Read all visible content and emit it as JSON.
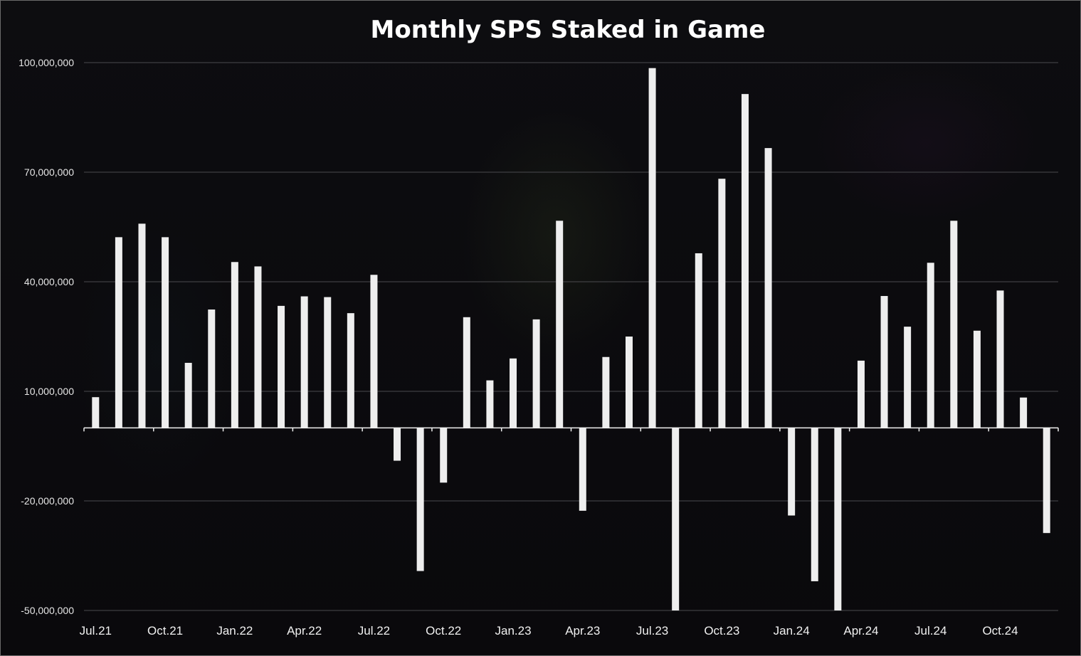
{
  "chart_data": {
    "type": "bar",
    "title": "Monthly SPS Staked in Game",
    "xlabel": "",
    "ylabel": "",
    "ylim": [
      -50000000,
      100000000
    ],
    "yticks": [
      100000000,
      70000000,
      40000000,
      10000000,
      -20000000,
      -50000000
    ],
    "ytick_labels": [
      "100,000,000",
      "70,000,000",
      "40,000,000",
      "10,000,000",
      "-20,000,000",
      "-50,000,000"
    ],
    "categories": [
      "Jul.21",
      "Aug.21",
      "Sep.21",
      "Oct.21",
      "Nov.21",
      "Dec.21",
      "Jan.22",
      "Feb.22",
      "Mar.22",
      "Apr.22",
      "May.22",
      "Jun.22",
      "Jul.22",
      "Aug.22",
      "Sep.22",
      "Oct.22",
      "Nov.22",
      "Dec.22",
      "Jan.23",
      "Feb.23",
      "Mar.23",
      "Apr.23",
      "May.23",
      "Jun.23",
      "Jul.23",
      "Aug.23",
      "Sep.23",
      "Oct.23",
      "Nov.23",
      "Dec.23",
      "Jan.24",
      "Feb.24",
      "Mar.24",
      "Apr.24",
      "May.24",
      "Jun.24",
      "Jul.24",
      "Aug.24",
      "Sep.24",
      "Oct.24",
      "Nov.24",
      "Dec.24"
    ],
    "xtick_labels": [
      "Jul.21",
      "",
      "",
      "Oct.21",
      "",
      "",
      "Jan.22",
      "",
      "",
      "Apr.22",
      "",
      "",
      "Jul.22",
      "",
      "",
      "Oct.22",
      "",
      "",
      "Jan.23",
      "",
      "",
      "Apr.23",
      "",
      "",
      "Jul.23",
      "",
      "",
      "Oct.23",
      "",
      "",
      "Jan.24",
      "",
      "",
      "Apr.24",
      "",
      "",
      "Jul.24",
      "",
      "",
      "Oct.24",
      "",
      ""
    ],
    "values": [
      8400000,
      52200000,
      55900000,
      52200000,
      17800000,
      32400000,
      45400000,
      44200000,
      33400000,
      36000000,
      35800000,
      31400000,
      41900000,
      -9000000,
      -39200000,
      -15000000,
      30300000,
      13000000,
      19000000,
      29700000,
      56700000,
      -22700000,
      19400000,
      25000000,
      98500000,
      -50000000,
      47800000,
      68200000,
      91400000,
      76600000,
      -24000000,
      -42000000,
      -50000000,
      18400000,
      36100000,
      27700000,
      45200000,
      56700000,
      26600000,
      37600000,
      8300000,
      -28800000
    ],
    "grid": true,
    "legend": "none",
    "bar_color": "#eeeeee"
  }
}
